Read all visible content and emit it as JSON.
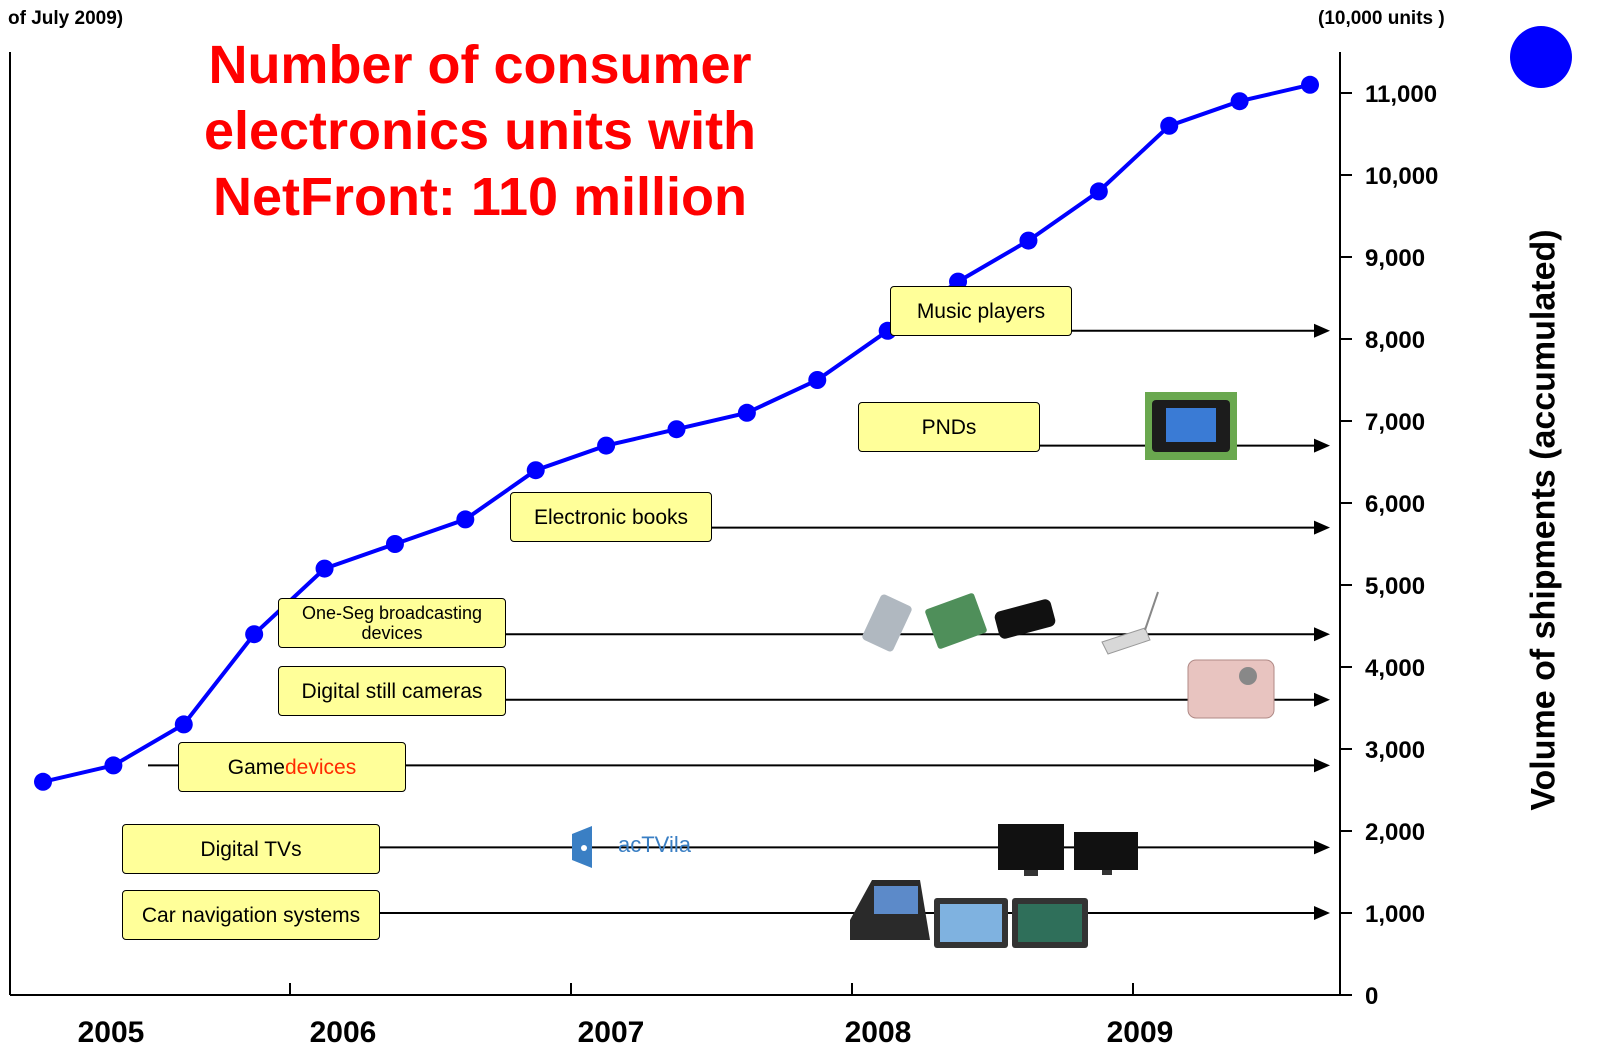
{
  "header": {
    "corner_note": "of July 2009)",
    "unit_note": "(10,000 units )",
    "headline": [
      "Number of consumer",
      "electronics units with",
      "NetFront: 110 million"
    ]
  },
  "chart_data": {
    "type": "line",
    "ylabel": "Volume of shipments (accumulated)",
    "ylim": [
      0,
      11500
    ],
    "y_ticks": [
      0,
      1000,
      2000,
      3000,
      4000,
      5000,
      6000,
      7000,
      8000,
      9000,
      10000,
      11000
    ],
    "y_tick_labels": [
      "0",
      "1,000",
      "2,000",
      "3,000",
      "4,000",
      "5,000",
      "6,000",
      "7,000",
      "8,000",
      "9,000",
      "10,000",
      "11,000"
    ],
    "x_tick_labels": [
      "2005",
      "2006",
      "2007",
      "2008",
      "2009"
    ],
    "series": [
      {
        "color": "#0000ff",
        "values": [
          2600,
          2800,
          3300,
          4400,
          5200,
          5500,
          5800,
          6400,
          6700,
          6900,
          7100,
          7500,
          8100,
          8700,
          9200,
          9800,
          10600,
          10900,
          11100
        ]
      }
    ],
    "categories_annotated": [
      {
        "label": "Music players",
        "level": 8100,
        "highlight": ""
      },
      {
        "label": "PNDs",
        "level": 6700,
        "highlight": ""
      },
      {
        "label": "Electronic books",
        "level": 5700,
        "highlight": ""
      },
      {
        "label": "One-Seg broadcasting devices",
        "level": 4400,
        "highlight": ""
      },
      {
        "label": "Digital still cameras",
        "level": 3600,
        "highlight": ""
      },
      {
        "label": "Game ",
        "level": 2800,
        "highlight": "devices"
      },
      {
        "label": "Digital TVs",
        "level": 1800,
        "highlight": ""
      },
      {
        "label": "Car navigation systems",
        "level": 1000,
        "highlight": ""
      }
    ],
    "image_labels": {
      "actvila": "acTVila"
    }
  }
}
